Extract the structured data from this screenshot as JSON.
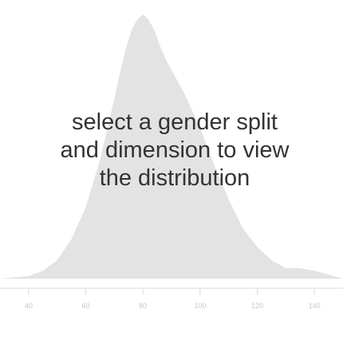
{
  "message": {
    "line1": "select a gender split",
    "line2": "and dimension to view",
    "line3": "the distribution"
  },
  "colors": {
    "density_fill": "#e3e3e3",
    "axis": "#dcdcdc",
    "tick_text": "#c8c8c8",
    "message_text": "#333333"
  },
  "chart_data": {
    "type": "area",
    "title": "",
    "xlabel": "",
    "ylabel": "",
    "xlim": [
      30,
      150
    ],
    "ylim": [
      0,
      1
    ],
    "grid": false,
    "x_ticks": [
      40,
      60,
      80,
      100,
      120,
      140
    ],
    "x_tick_labels": [
      "40",
      "60",
      "80",
      "100",
      "120",
      "140"
    ],
    "series": [
      {
        "x": [
          30,
          35,
          40,
          45,
          50,
          55,
          60,
          65,
          70,
          72,
          74,
          76,
          78,
          80,
          82,
          84,
          86,
          88,
          90,
          92,
          95,
          100,
          105,
          110,
          115,
          120,
          125,
          130,
          135,
          140,
          145,
          150
        ],
        "values": [
          0,
          0.005,
          0.01,
          0.03,
          0.07,
          0.15,
          0.27,
          0.45,
          0.68,
          0.78,
          0.87,
          0.94,
          0.98,
          1.0,
          0.98,
          0.94,
          0.88,
          0.83,
          0.79,
          0.75,
          0.69,
          0.57,
          0.43,
          0.3,
          0.19,
          0.12,
          0.07,
          0.04,
          0.04,
          0.03,
          0.015,
          0.0
        ]
      }
    ]
  }
}
